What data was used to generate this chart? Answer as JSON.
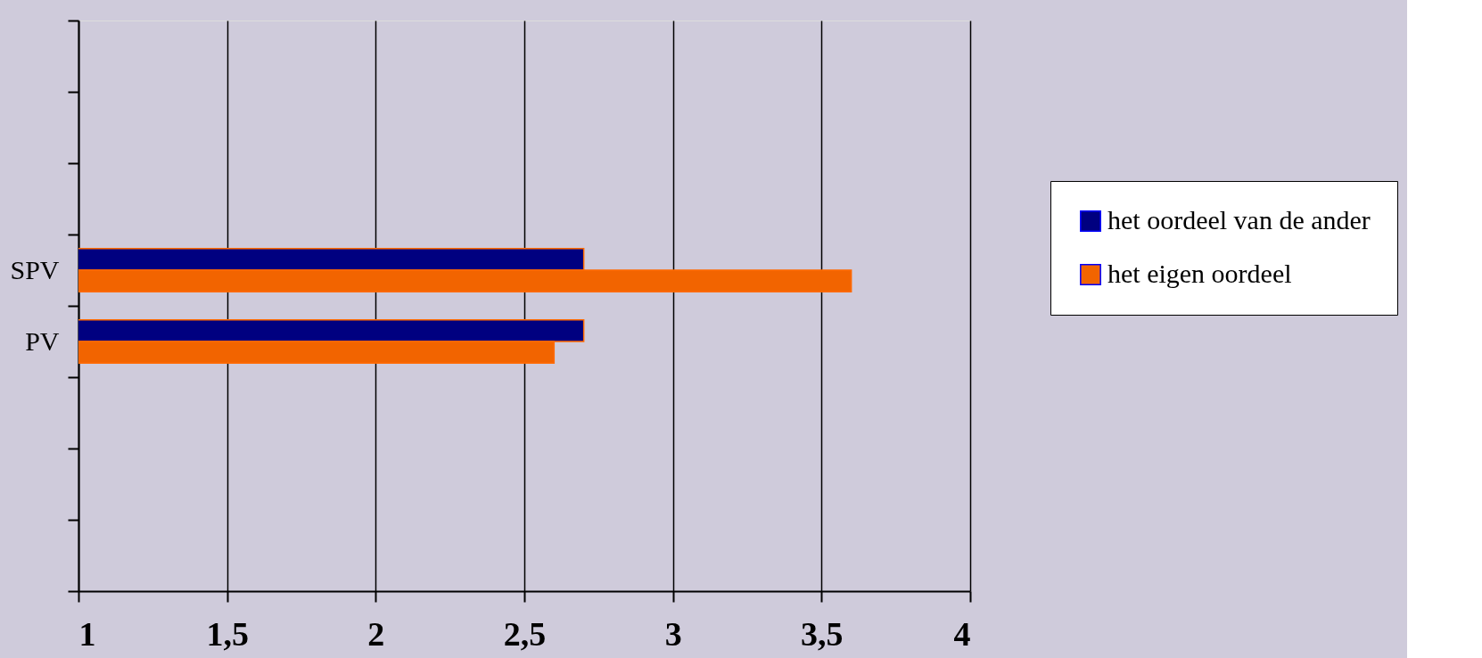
{
  "chart_data": {
    "type": "bar",
    "orientation": "horizontal",
    "categories": [
      null,
      null,
      null,
      "SPV",
      "PV",
      null,
      null,
      null
    ],
    "series": [
      {
        "name": "het oordeel van de ander",
        "color": "#000080",
        "values": [
          null,
          null,
          null,
          2.7,
          2.7,
          null,
          null,
          null
        ]
      },
      {
        "name": "het eigen oordeel",
        "color": "#f26400",
        "values": [
          null,
          null,
          null,
          3.6,
          2.6,
          null,
          null,
          null
        ]
      }
    ],
    "xlim": [
      1,
      4
    ],
    "xticks": [
      1,
      {
        "value": 1.5,
        "label": "1,5"
      },
      2,
      {
        "value": 2.5,
        "label": "2,5"
      },
      3,
      {
        "value": 3.5,
        "label": "3,5"
      },
      4
    ],
    "grid": "x",
    "legend": "right"
  }
}
